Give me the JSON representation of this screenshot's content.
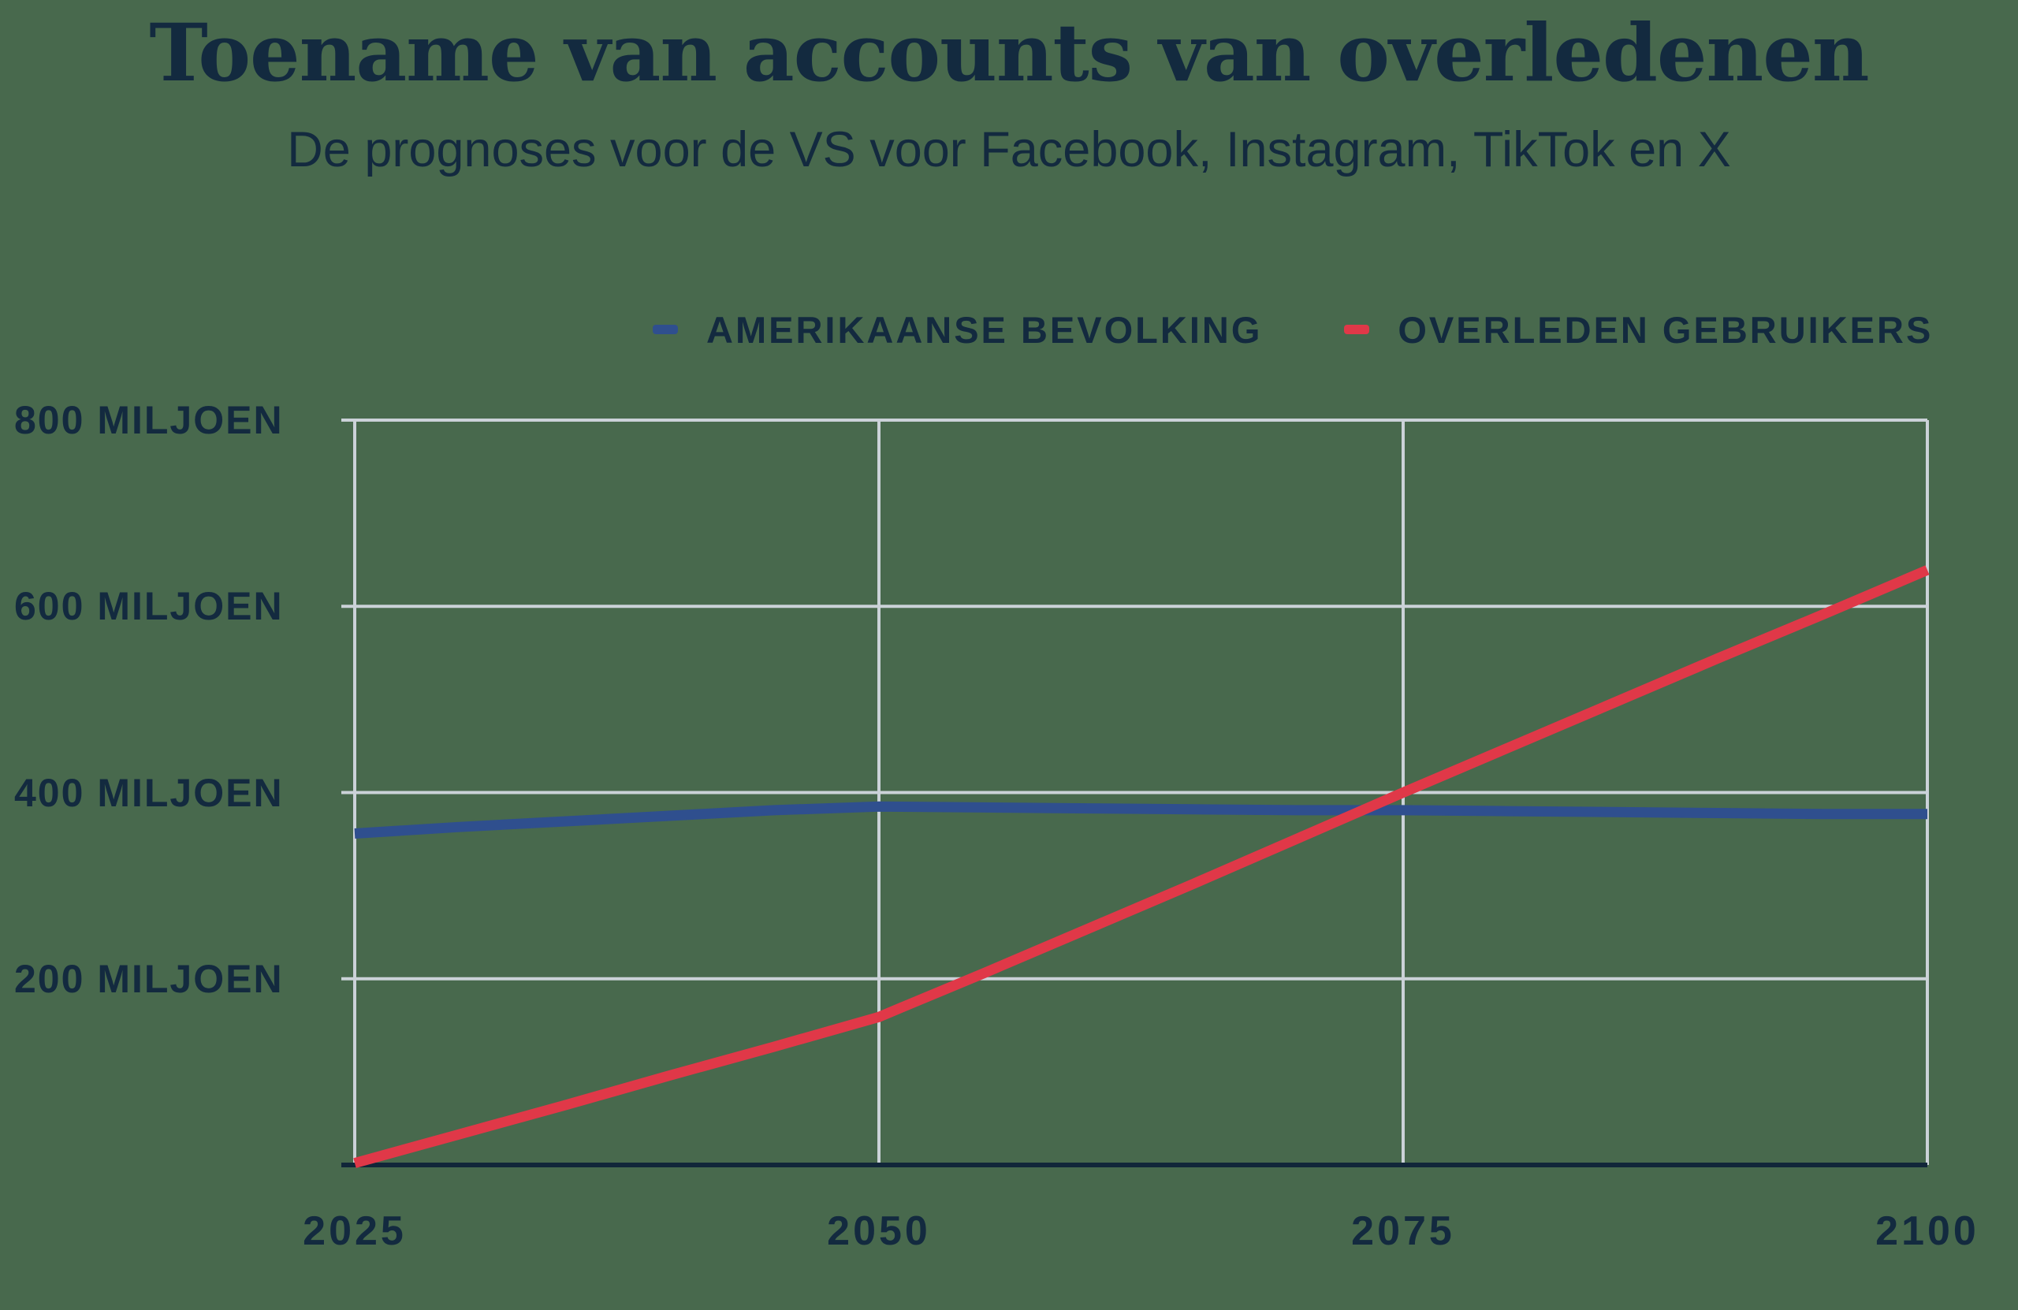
{
  "header": {
    "title": "Toename van accounts van overledenen",
    "subtitle": "De prognoses voor de VS voor Facebook, Instagram, TikTok en X"
  },
  "colors": {
    "background": "#48694D",
    "text": "#132A3F",
    "grid": "#CBD2D8",
    "baseline": "#112639"
  },
  "chart_data": {
    "type": "line",
    "title": "Toename van accounts van overledenen",
    "subtitle": "De prognoses voor de VS voor Facebook, Instagram, TikTok en X",
    "xlabel": "",
    "ylabel": "",
    "unit": "miljoen",
    "grid": true,
    "legend_position": "top-center",
    "x_range": [
      2025,
      2100
    ],
    "y_range": [
      0,
      800
    ],
    "x_ticks": [
      2025,
      2050,
      2075,
      2100
    ],
    "y_ticks": [
      {
        "value": 800,
        "label": "800 MILJOEN"
      },
      {
        "value": 600,
        "label": "600 MILJOEN"
      },
      {
        "value": 400,
        "label": "400 MILJOEN"
      },
      {
        "value": 200,
        "label": "200 MILJOEN"
      }
    ],
    "series": [
      {
        "name": "AMERIKAANSE BEVOLKING",
        "color": "#2F4F8E",
        "points": [
          [
            2025,
            356
          ],
          [
            2030,
            363
          ],
          [
            2035,
            369
          ],
          [
            2040,
            375
          ],
          [
            2045,
            381
          ],
          [
            2050,
            385
          ],
          [
            2055,
            384
          ],
          [
            2060,
            383
          ],
          [
            2065,
            382
          ],
          [
            2070,
            381
          ],
          [
            2075,
            381
          ],
          [
            2080,
            380
          ],
          [
            2085,
            379
          ],
          [
            2090,
            378
          ],
          [
            2095,
            377
          ],
          [
            2100,
            377
          ]
        ]
      },
      {
        "name": "OVERLEDEN GEBRUIKERS",
        "color": "#E03848",
        "points": [
          [
            2025,
            2
          ],
          [
            2030,
            33
          ],
          [
            2035,
            64
          ],
          [
            2040,
            96
          ],
          [
            2045,
            127
          ],
          [
            2050,
            159
          ],
          [
            2055,
            206
          ],
          [
            2060,
            254
          ],
          [
            2065,
            302
          ],
          [
            2070,
            351
          ],
          [
            2075,
            400
          ],
          [
            2080,
            448
          ],
          [
            2085,
            496
          ],
          [
            2090,
            544
          ],
          [
            2095,
            591
          ],
          [
            2100,
            639
          ]
        ]
      }
    ]
  }
}
